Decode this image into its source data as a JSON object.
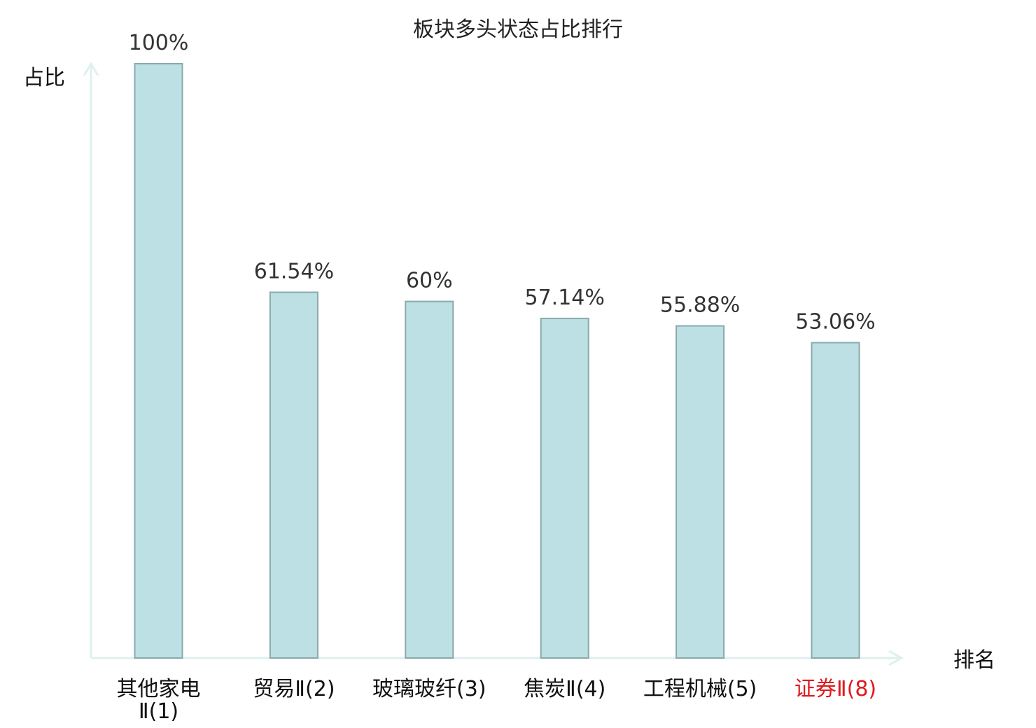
{
  "chart_data": {
    "type": "bar",
    "title": "板块多头状态占比排行",
    "xlabel": "排名",
    "ylabel": "占比",
    "categories": [
      "其他家电Ⅱ(1)",
      "贸易Ⅱ(2)",
      "玻璃玻纤(3)",
      "焦炭Ⅱ(4)",
      "工程机械(5)",
      "证券Ⅱ(8)"
    ],
    "category_lines": [
      [
        "其他家电",
        "Ⅱ(1)"
      ],
      [
        "贸易Ⅱ(2)"
      ],
      [
        "玻璃玻纤(3)"
      ],
      [
        "焦炭Ⅱ(4)"
      ],
      [
        "工程机械(5)"
      ],
      [
        "证券Ⅱ(8)"
      ]
    ],
    "values": [
      100,
      61.54,
      60,
      57.14,
      55.88,
      53.06
    ],
    "value_labels": [
      "100%",
      "61.54%",
      "60%",
      "57.14%",
      "55.88%",
      "53.06%"
    ],
    "highlight_index": 5,
    "ylim": [
      0,
      100
    ],
    "grid": false,
    "legend": "none"
  },
  "colors": {
    "bar_fill": "#bce0e3",
    "bar_stroke": "#8aa9ad",
    "axis": "#dff0ee",
    "label_default": "#111111",
    "label_highlight": "#e0191e"
  }
}
